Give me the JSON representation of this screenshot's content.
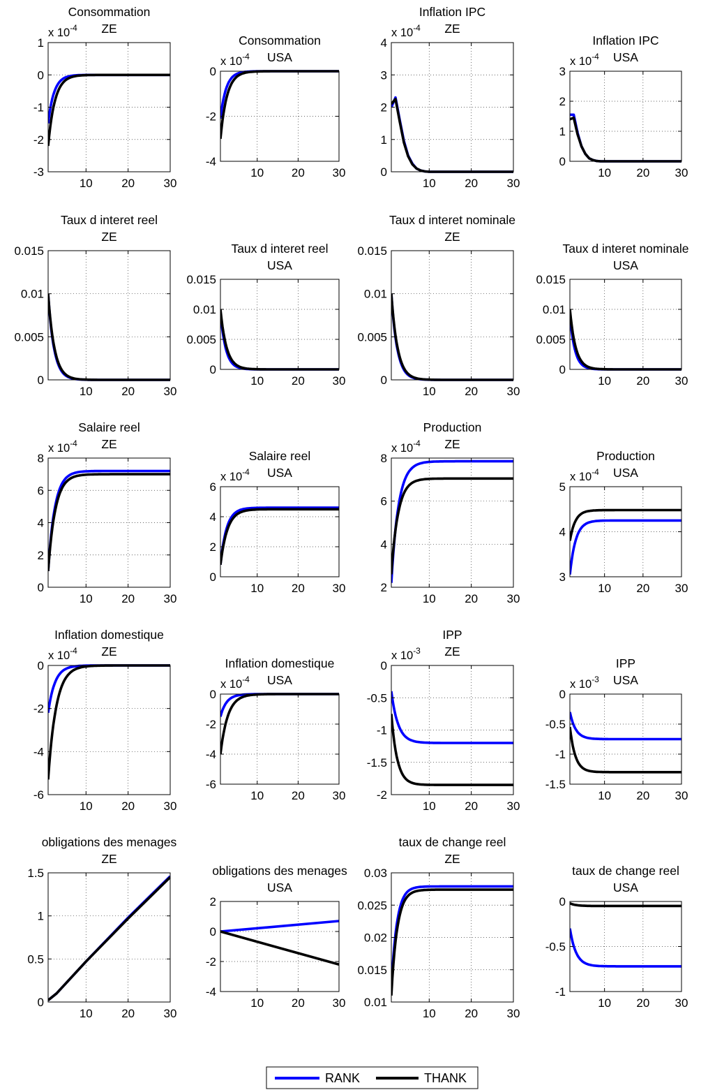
{
  "legend": {
    "entries": [
      {
        "label": "RANK",
        "color": "#0000ff"
      },
      {
        "label": "THANK",
        "color": "#000000"
      }
    ],
    "placement": "bottom-center"
  },
  "chart_data": [
    {
      "type": "line",
      "title": [
        "Consommation",
        "ZE"
      ],
      "exponent": "-4",
      "xlim": [
        1,
        30
      ],
      "ylim": [
        -3,
        1
      ],
      "xticks": [
        10,
        20,
        30
      ],
      "yticks": [
        -3,
        -2,
        -1,
        0,
        1
      ],
      "grid": true,
      "series": [
        {
          "name": "RANK",
          "color": "#0000ff",
          "start": -1.5,
          "end": 0,
          "tau": 1.4
        },
        {
          "name": "THANK",
          "color": "#000000",
          "start": -2.2,
          "end": 0,
          "tau": 1.6
        }
      ]
    },
    {
      "type": "line",
      "title": [
        "Consommation",
        "USA"
      ],
      "exponent": "-4",
      "xlim": [
        1,
        30
      ],
      "ylim": [
        -4,
        0
      ],
      "xticks": [
        10,
        20,
        30
      ],
      "yticks": [
        -4,
        -2,
        0
      ],
      "grid": true,
      "series": [
        {
          "name": "RANK",
          "color": "#0000ff",
          "start": -2.1,
          "end": 0,
          "tau": 1.4
        },
        {
          "name": "THANK",
          "color": "#000000",
          "start": -3.0,
          "end": 0,
          "tau": 1.6
        }
      ]
    },
    {
      "type": "line",
      "title": [
        "Inflation IPC",
        "ZE"
      ],
      "exponent": "-4",
      "xlim": [
        1,
        30
      ],
      "ylim": [
        0,
        4
      ],
      "xticks": [
        10,
        20,
        30
      ],
      "yticks": [
        0,
        1,
        2,
        3,
        4
      ],
      "grid": true,
      "series": [
        {
          "name": "RANK",
          "color": "#0000ff",
          "points": [
            [
              1,
              2.0
            ],
            [
              2,
              2.3
            ],
            [
              3,
              1.6
            ],
            [
              4,
              0.95
            ],
            [
              5,
              0.5
            ],
            [
              6,
              0.25
            ],
            [
              7,
              0.1
            ],
            [
              8,
              0.04
            ],
            [
              9,
              0.01
            ],
            [
              10,
              0
            ],
            [
              30,
              0
            ]
          ]
        },
        {
          "name": "THANK",
          "color": "#000000",
          "points": [
            [
              1,
              2.1
            ],
            [
              2,
              2.25
            ],
            [
              3,
              1.55
            ],
            [
              4,
              0.9
            ],
            [
              5,
              0.48
            ],
            [
              6,
              0.23
            ],
            [
              7,
              0.1
            ],
            [
              8,
              0.04
            ],
            [
              9,
              0.01
            ],
            [
              10,
              0
            ],
            [
              30,
              0
            ]
          ]
        }
      ]
    },
    {
      "type": "line",
      "title": [
        "Inflation IPC",
        "USA"
      ],
      "exponent": "-4",
      "xlim": [
        1,
        30
      ],
      "ylim": [
        0,
        3
      ],
      "xticks": [
        10,
        20,
        30
      ],
      "yticks": [
        0,
        1,
        2,
        3
      ],
      "grid": true,
      "series": [
        {
          "name": "RANK",
          "color": "#0000ff",
          "points": [
            [
              1,
              1.55
            ],
            [
              2,
              1.55
            ],
            [
              3,
              0.95
            ],
            [
              4,
              0.5
            ],
            [
              5,
              0.25
            ],
            [
              6,
              0.1
            ],
            [
              7,
              0.04
            ],
            [
              8,
              0.01
            ],
            [
              9,
              0
            ],
            [
              30,
              0
            ]
          ]
        },
        {
          "name": "THANK",
          "color": "#000000",
          "points": [
            [
              1,
              1.4
            ],
            [
              2,
              1.45
            ],
            [
              3,
              0.9
            ],
            [
              4,
              0.5
            ],
            [
              5,
              0.25
            ],
            [
              6,
              0.1
            ],
            [
              7,
              0.04
            ],
            [
              8,
              0.01
            ],
            [
              9,
              0
            ],
            [
              30,
              0
            ]
          ]
        }
      ]
    },
    {
      "type": "line",
      "title": [
        "Taux d interet reel",
        "ZE"
      ],
      "xlim": [
        1,
        30
      ],
      "ylim": [
        0,
        0.015
      ],
      "xticks": [
        10,
        20,
        30
      ],
      "yticks": [
        0,
        0.005,
        0.01,
        0.015
      ],
      "yticklabels": [
        "0",
        "0.005",
        "0.01",
        "0.015"
      ],
      "grid": true,
      "series": [
        {
          "name": "RANK",
          "color": "#0000ff",
          "start": 0.01,
          "end": 0,
          "tau": 1.4
        },
        {
          "name": "THANK",
          "color": "#000000",
          "start": 0.01,
          "end": 0,
          "tau": 1.5
        }
      ]
    },
    {
      "type": "line",
      "title": [
        "Taux d interet reel",
        "USA"
      ],
      "xlim": [
        1,
        30
      ],
      "ylim": [
        0,
        0.015
      ],
      "xticks": [
        10,
        20,
        30
      ],
      "yticks": [
        0,
        0.005,
        0.01,
        0.015
      ],
      "yticklabels": [
        "0",
        "0.005",
        "0.01",
        "0.015"
      ],
      "grid": true,
      "series": [
        {
          "name": "RANK",
          "color": "#0000ff",
          "start": 0.0095,
          "end": 0,
          "tau": 1.3
        },
        {
          "name": "THANK",
          "color": "#000000",
          "start": 0.01,
          "end": 0,
          "tau": 1.5
        }
      ]
    },
    {
      "type": "line",
      "title": [
        "Taux d interet nominale",
        "ZE"
      ],
      "xlim": [
        1,
        30
      ],
      "ylim": [
        0,
        0.015
      ],
      "xticks": [
        10,
        20,
        30
      ],
      "yticks": [
        0,
        0.005,
        0.01,
        0.015
      ],
      "yticklabels": [
        "0",
        "0.005",
        "0.01",
        "0.015"
      ],
      "grid": true,
      "series": [
        {
          "name": "RANK",
          "color": "#0000ff",
          "start": 0.01,
          "end": 0,
          "tau": 1.4
        },
        {
          "name": "THANK",
          "color": "#000000",
          "start": 0.01,
          "end": 0,
          "tau": 1.5
        }
      ]
    },
    {
      "type": "line",
      "title": [
        "Taux d interet nominale",
        "USA"
      ],
      "xlim": [
        1,
        30
      ],
      "ylim": [
        0,
        0.015
      ],
      "xticks": [
        10,
        20,
        30
      ],
      "yticks": [
        0,
        0.005,
        0.01,
        0.015
      ],
      "yticklabels": [
        "0",
        "0.005",
        "0.01",
        "0.015"
      ],
      "grid": true,
      "series": [
        {
          "name": "RANK",
          "color": "#0000ff",
          "start": 0.009,
          "end": 0,
          "tau": 1.3
        },
        {
          "name": "THANK",
          "color": "#000000",
          "start": 0.01,
          "end": 0,
          "tau": 1.5
        }
      ]
    },
    {
      "type": "line",
      "title": [
        "Salaire reel",
        "ZE"
      ],
      "exponent": "-4",
      "xlim": [
        1,
        30
      ],
      "ylim": [
        0,
        8
      ],
      "xticks": [
        10,
        20,
        30
      ],
      "yticks": [
        0,
        2,
        4,
        6,
        8
      ],
      "grid": true,
      "series": [
        {
          "name": "RANK",
          "color": "#0000ff",
          "start": 1.0,
          "end": 7.2,
          "tau": 1.6
        },
        {
          "name": "THANK",
          "color": "#000000",
          "start": 1.0,
          "end": 7.0,
          "tau": 1.7
        }
      ]
    },
    {
      "type": "line",
      "title": [
        "Salaire reel",
        "USA"
      ],
      "exponent": "-4",
      "xlim": [
        1,
        30
      ],
      "ylim": [
        0,
        6
      ],
      "xticks": [
        10,
        20,
        30
      ],
      "yticks": [
        0,
        2,
        4,
        6
      ],
      "grid": true,
      "series": [
        {
          "name": "RANK",
          "color": "#0000ff",
          "start": 0.8,
          "end": 4.6,
          "tau": 1.5
        },
        {
          "name": "THANK",
          "color": "#000000",
          "start": 0.8,
          "end": 4.5,
          "tau": 1.7
        }
      ]
    },
    {
      "type": "line",
      "title": [
        "Production",
        "ZE"
      ],
      "exponent": "-4",
      "xlim": [
        1,
        30
      ],
      "ylim": [
        2,
        8
      ],
      "xticks": [
        10,
        20,
        30
      ],
      "yticks": [
        2,
        4,
        6,
        8
      ],
      "grid": true,
      "series": [
        {
          "name": "RANK",
          "color": "#0000ff",
          "start": 2.2,
          "end": 7.85,
          "tau": 1.7
        },
        {
          "name": "THANK",
          "color": "#000000",
          "start": 2.6,
          "end": 7.05,
          "tau": 1.6
        }
      ]
    },
    {
      "type": "line",
      "title": [
        "Production",
        "USA"
      ],
      "exponent": "-4",
      "xlim": [
        1,
        30
      ],
      "ylim": [
        3,
        5
      ],
      "xticks": [
        10,
        20,
        30
      ],
      "yticks": [
        3,
        4,
        5
      ],
      "grid": true,
      "series": [
        {
          "name": "RANK",
          "color": "#0000ff",
          "start": 3.05,
          "end": 4.25,
          "tau": 1.5
        },
        {
          "name": "THANK",
          "color": "#000000",
          "start": 3.8,
          "end": 4.48,
          "tau": 1.4
        }
      ]
    },
    {
      "type": "line",
      "title": [
        "Inflation domestique",
        "ZE"
      ],
      "exponent": "-4",
      "xlim": [
        1,
        30
      ],
      "ylim": [
        -6,
        0
      ],
      "xticks": [
        10,
        20,
        30
      ],
      "yticks": [
        -6,
        -4,
        -2,
        0
      ],
      "grid": true,
      "series": [
        {
          "name": "RANK",
          "color": "#0000ff",
          "start": -2.2,
          "end": 0,
          "tau": 1.6
        },
        {
          "name": "THANK",
          "color": "#000000",
          "start": -5.3,
          "end": 0,
          "tau": 1.9
        }
      ]
    },
    {
      "type": "line",
      "title": [
        "Inflation domestique",
        "USA"
      ],
      "exponent": "-4",
      "xlim": [
        1,
        30
      ],
      "ylim": [
        -6,
        0
      ],
      "xticks": [
        10,
        20,
        30
      ],
      "yticks": [
        -6,
        -4,
        -2,
        0
      ],
      "grid": true,
      "series": [
        {
          "name": "RANK",
          "color": "#0000ff",
          "start": -1.5,
          "end": 0,
          "tau": 1.5
        },
        {
          "name": "THANK",
          "color": "#000000",
          "start": -4.0,
          "end": 0,
          "tau": 1.8
        }
      ]
    },
    {
      "type": "line",
      "title": [
        "IPP",
        "ZE"
      ],
      "exponent": "-3",
      "xlim": [
        1,
        30
      ],
      "ylim": [
        -2,
        0
      ],
      "xticks": [
        10,
        20,
        30
      ],
      "yticks": [
        -2,
        -1.5,
        -1,
        -0.5,
        0
      ],
      "grid": true,
      "series": [
        {
          "name": "RANK",
          "color": "#0000ff",
          "start": -0.4,
          "end": -1.2,
          "tau": 1.6
        },
        {
          "name": "THANK",
          "color": "#000000",
          "start": -0.75,
          "end": -1.85,
          "tau": 1.4
        }
      ]
    },
    {
      "type": "line",
      "title": [
        "IPP",
        "USA"
      ],
      "exponent": "-3",
      "xlim": [
        1,
        30
      ],
      "ylim": [
        -1.5,
        0
      ],
      "xticks": [
        10,
        20,
        30
      ],
      "yticks": [
        -1.5,
        -1,
        -0.5,
        0
      ],
      "grid": true,
      "series": [
        {
          "name": "RANK",
          "color": "#0000ff",
          "start": -0.3,
          "end": -0.75,
          "tau": 1.5
        },
        {
          "name": "THANK",
          "color": "#000000",
          "start": -0.55,
          "end": -1.3,
          "tau": 1.4
        }
      ]
    },
    {
      "type": "line",
      "title": [
        "obligations des menages",
        "ZE"
      ],
      "xlim": [
        1,
        30
      ],
      "ylim": [
        0,
        1.5
      ],
      "xticks": [
        10,
        20,
        30
      ],
      "yticks": [
        0,
        0.5,
        1,
        1.5
      ],
      "grid": true,
      "series": [
        {
          "name": "RANK",
          "color": "#0000ff",
          "points": [
            [
              1,
              0.02
            ],
            [
              3,
              0.1
            ],
            [
              10,
              0.47
            ],
            [
              20,
              0.98
            ],
            [
              30,
              1.46
            ]
          ]
        },
        {
          "name": "THANK",
          "color": "#000000",
          "points": [
            [
              1,
              0.02
            ],
            [
              3,
              0.1
            ],
            [
              10,
              0.47
            ],
            [
              20,
              0.97
            ],
            [
              30,
              1.45
            ]
          ]
        }
      ]
    },
    {
      "type": "line",
      "title": [
        "obligations des menages",
        "USA"
      ],
      "xlim": [
        1,
        30
      ],
      "ylim": [
        -4,
        2
      ],
      "xticks": [
        10,
        20,
        30
      ],
      "yticks": [
        -4,
        -2,
        0,
        2
      ],
      "grid": true,
      "series": [
        {
          "name": "RANK",
          "color": "#0000ff",
          "points": [
            [
              1,
              0
            ],
            [
              30,
              0.7
            ]
          ]
        },
        {
          "name": "THANK",
          "color": "#000000",
          "points": [
            [
              1,
              0
            ],
            [
              30,
              -2.2
            ]
          ]
        }
      ]
    },
    {
      "type": "line",
      "title": [
        "taux de change reel",
        "ZE"
      ],
      "xlim": [
        1,
        30
      ],
      "ylim": [
        0.01,
        0.03
      ],
      "xticks": [
        10,
        20,
        30
      ],
      "yticks": [
        0.01,
        0.015,
        0.02,
        0.025,
        0.03
      ],
      "yticklabels": [
        "0.01",
        "0.015",
        "0.02",
        "0.025",
        "0.03"
      ],
      "grid": true,
      "series": [
        {
          "name": "RANK",
          "color": "#0000ff",
          "start": 0.012,
          "end": 0.0279,
          "tau": 1.3
        },
        {
          "name": "THANK",
          "color": "#000000",
          "start": 0.011,
          "end": 0.0274,
          "tau": 1.4
        }
      ]
    },
    {
      "type": "line",
      "title": [
        "taux de change reel",
        "USA"
      ],
      "xlim": [
        1,
        30
      ],
      "ylim": [
        -1,
        0
      ],
      "xticks": [
        10,
        20,
        30
      ],
      "yticks": [
        -1,
        -0.5,
        0
      ],
      "grid": true,
      "series": [
        {
          "name": "RANK",
          "color": "#0000ff",
          "start": -0.3,
          "end": -0.72,
          "tau": 1.6
        },
        {
          "name": "THANK",
          "color": "#000000",
          "start": -0.02,
          "end": -0.05,
          "tau": 1.5
        }
      ]
    }
  ]
}
